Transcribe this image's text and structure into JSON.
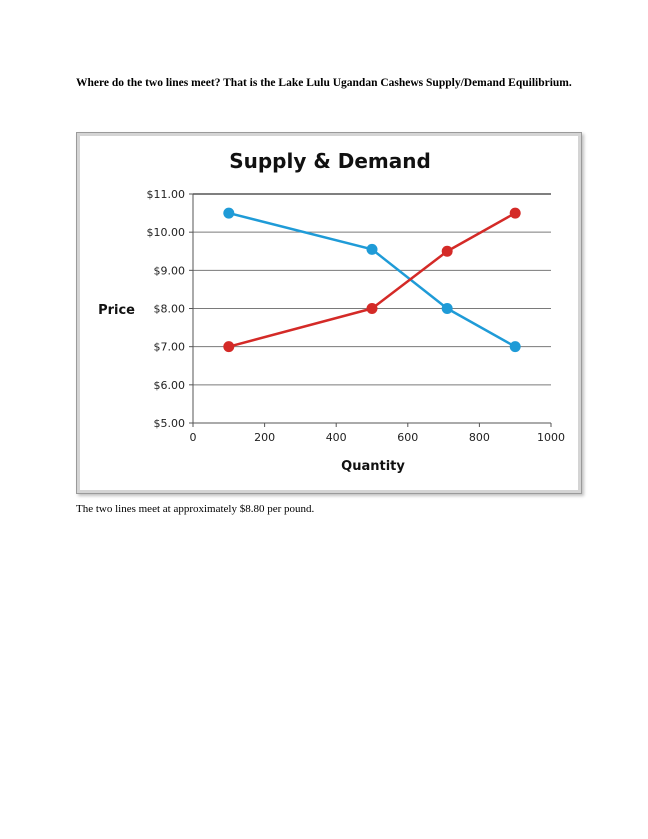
{
  "question": "Where do the two lines meet? That is the Lake Lulu Ugandan Cashews Supply/Demand Equilibrium.",
  "answer": "The two lines meet at approximately $8.80 per pound.",
  "chart_data": {
    "type": "line",
    "title": "Supply & Demand",
    "xlabel": "Quantity",
    "ylabel": "Price",
    "xlim": [
      0,
      1000
    ],
    "ylim": [
      5,
      11
    ],
    "x_ticks": [
      "0",
      "200",
      "400",
      "600",
      "800",
      "1000"
    ],
    "y_ticks": [
      "$5.00",
      "$6.00",
      "$7.00",
      "$8.00",
      "$9.00",
      "$10.00",
      "$11.00"
    ],
    "grid": "horizontal",
    "legend": "none",
    "series": [
      {
        "color": "#1f9bd7",
        "x": [
          100,
          500,
          710,
          900
        ],
        "y": [
          10.5,
          9.55,
          8.0,
          7.0
        ]
      },
      {
        "color": "#d42a27",
        "x": [
          100,
          500,
          710,
          900
        ],
        "y": [
          7.0,
          8.0,
          9.5,
          10.5
        ]
      }
    ]
  }
}
